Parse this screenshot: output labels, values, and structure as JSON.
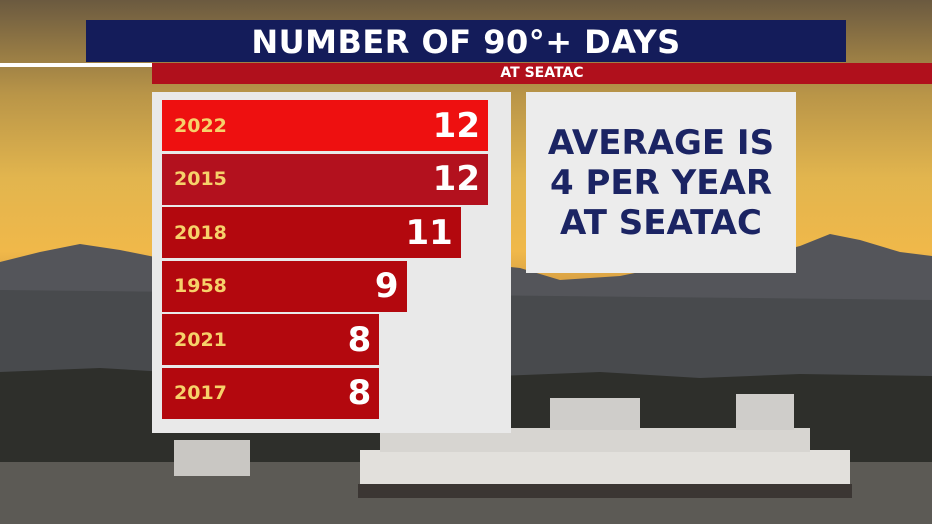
{
  "header": {
    "title": "NUMBER OF 90°+ DAYS",
    "subtitle": "AT SEATAC"
  },
  "info_box": {
    "lines": [
      "AVERAGE IS",
      "4 PER YEAR",
      "AT SEATAC"
    ]
  },
  "colors": {
    "title_bar": "#141c5a",
    "subtitle_bar": "#b0101c",
    "info_text": "#1b2463",
    "bar_colors": [
      "#ee1010",
      "#b3111e",
      "#b3080e",
      "#b3080e",
      "#b3080e",
      "#b3080e"
    ],
    "year_text": "#f6d16a"
  },
  "chart_data": {
    "type": "bar",
    "orientation": "horizontal",
    "categories": [
      "2022",
      "2015",
      "2018",
      "1958",
      "2021",
      "2017"
    ],
    "values": [
      12,
      12,
      11,
      9,
      8,
      8
    ],
    "title": "NUMBER OF 90°+ DAYS",
    "subtitle": "AT SEATAC",
    "xlim": [
      0,
      12
    ],
    "grid": false,
    "legend": "none"
  }
}
